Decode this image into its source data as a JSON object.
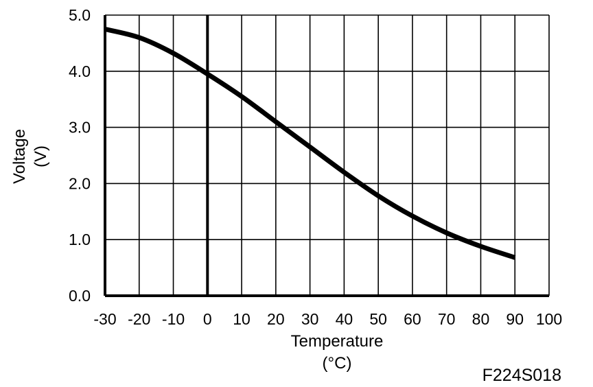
{
  "chart_data": {
    "type": "line",
    "title": "",
    "xlabel": "Temperature",
    "xlabel_unit": "(°C)",
    "ylabel": "Voltage",
    "ylabel_unit": "(V)",
    "xlim": [
      -30,
      100
    ],
    "ylim": [
      0,
      5
    ],
    "x_ticks": [
      -30,
      -20,
      -10,
      0,
      10,
      20,
      30,
      40,
      50,
      60,
      70,
      80,
      90,
      100
    ],
    "x_tick_labels": [
      "-30",
      "-20",
      "-10",
      "0",
      "10",
      "20",
      "30",
      "40",
      "50",
      "60",
      "70",
      "80",
      "90",
      "100"
    ],
    "y_ticks": [
      0,
      1,
      2,
      3,
      4,
      5
    ],
    "y_tick_labels": [
      "0.0",
      "1.0",
      "2.0",
      "3.0",
      "4.0",
      "5.0"
    ],
    "grid": true,
    "series": [
      {
        "color": "#000000",
        "x": [
          -30,
          -20,
          -10,
          0,
          10,
          20,
          30,
          40,
          50,
          60,
          70,
          80,
          90
        ],
        "y": [
          4.75,
          4.6,
          4.32,
          3.95,
          3.55,
          3.1,
          2.65,
          2.2,
          1.78,
          1.42,
          1.12,
          0.88,
          0.68
        ]
      }
    ]
  },
  "figure_id": "F224S018"
}
